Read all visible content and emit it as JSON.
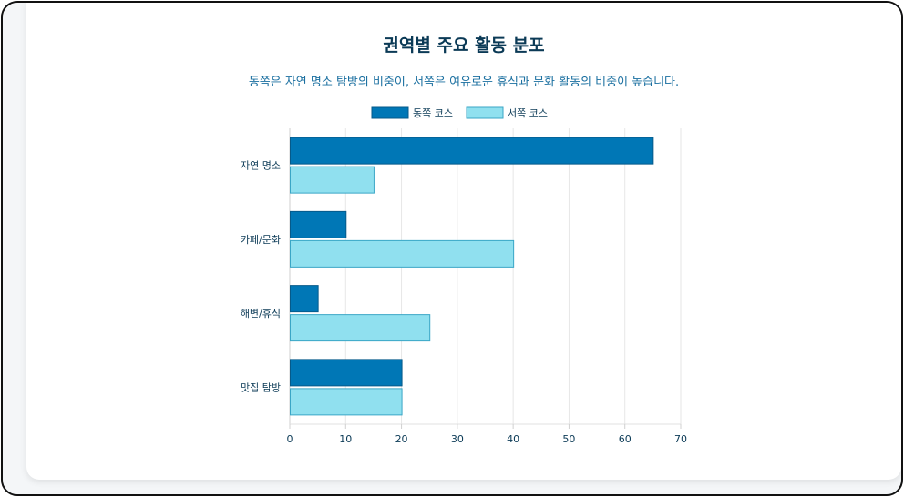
{
  "chart_data": {
    "type": "bar",
    "orientation": "horizontal",
    "title": "권역별 주요 활동 분포",
    "subtitle": "동쪽은 자연 명소 탐방의 비중이, 서쪽은 여유로운 휴식과 문화 활동의 비중이 높습니다.",
    "categories": [
      "자연 명소",
      "카페/문화",
      "해변/휴식",
      "맛집 탐방"
    ],
    "series": [
      {
        "name": "동쪽 코스",
        "values": [
          65,
          10,
          5,
          20
        ],
        "color": "#0077b6"
      },
      {
        "name": "서쪽 코스",
        "values": [
          15,
          40,
          25,
          20
        ],
        "color": "#90e0ef"
      }
    ],
    "xlim": [
      0,
      70
    ],
    "xticks": [
      "0",
      "10",
      "20",
      "30",
      "40",
      "50",
      "60",
      "70"
    ],
    "grid": true,
    "legend_position": "top-center"
  }
}
